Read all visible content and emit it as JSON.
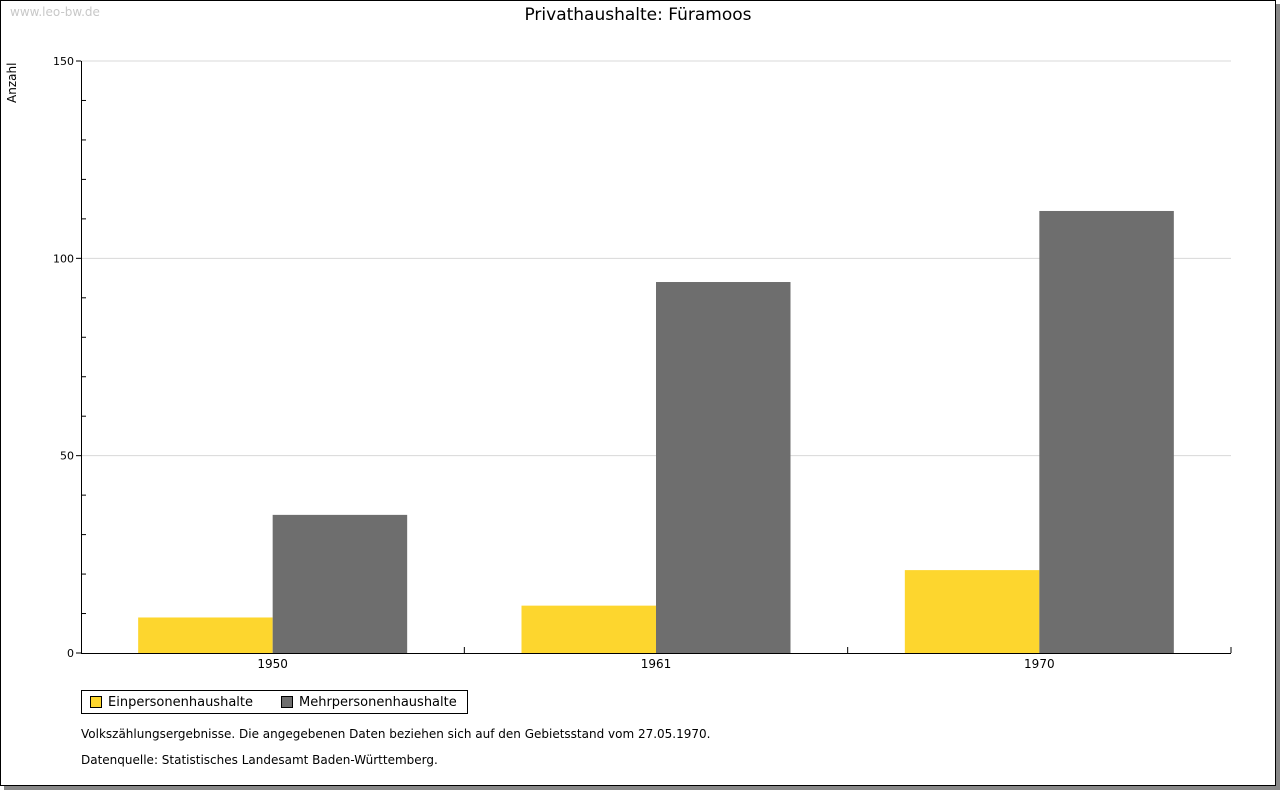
{
  "watermark": "www.leo-bw.de",
  "chart_data": {
    "type": "bar",
    "title": "Privathaushalte: Füramoos",
    "xlabel": "",
    "ylabel": "Anzahl",
    "ylim": [
      0,
      150
    ],
    "yticks": [
      0,
      50,
      100,
      150
    ],
    "grid": true,
    "categories": [
      "1950",
      "1961",
      "1970"
    ],
    "series": [
      {
        "name": "Einpersonenhaushalte",
        "color": "#fdd62e",
        "values": [
          9,
          12,
          21
        ]
      },
      {
        "name": "Mehrpersonenhaushalte",
        "color": "#6e6e6e",
        "values": [
          35,
          94,
          112
        ]
      }
    ],
    "legend": "bottom-left"
  },
  "notes": [
    "Volkszählungsergebnisse. Die angegebenen Daten beziehen sich auf den Gebietsstand vom 27.05.1970.",
    "Datenquelle: Statistisches Landesamt Baden-Württemberg."
  ]
}
